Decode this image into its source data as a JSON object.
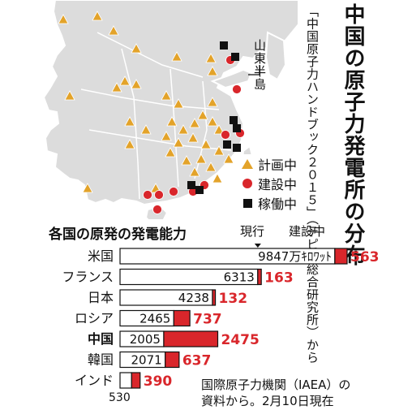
{
  "title": "中国の原子力発電所の分布",
  "source": "「中国原子力ハンドブック２０１５」（テピア総合研究所）から",
  "map": {
    "label": "山東半島",
    "legend": [
      {
        "label": "計画中",
        "symbol": "triangle-icon"
      },
      {
        "label": "建設中",
        "symbol": "circle-icon"
      },
      {
        "label": "稼働中",
        "symbol": "square-icon"
      }
    ],
    "colors": {
      "land": "#dcdcdc",
      "border": "#ffffff",
      "planned": "#e3a32a",
      "construction": "#d9262b",
      "operating": "#111111"
    }
  },
  "chart_data": {
    "type": "bar",
    "title": "各国の原発の発電能力",
    "header_current": "現行",
    "header_construction": "建設中",
    "unit_label": "9847万ｷﾛﾜｯﾄ",
    "categories": [
      "米国",
      "フランス",
      "日本",
      "ロシア",
      "中国",
      "韓国",
      "インド"
    ],
    "highlight": "中国",
    "series": [
      {
        "name": "現行",
        "values": [
          9847,
          6313,
          4238,
          2465,
          2005,
          2071,
          530
        ],
        "color": "#ffffff"
      },
      {
        "name": "建設中",
        "values": [
          563,
          163,
          132,
          737,
          2475,
          637,
          390
        ],
        "color": "#d9262b"
      }
    ],
    "value_labels_current": [
      "9847万ｷﾛﾜｯﾄ",
      "6313",
      "4238",
      "2465",
      "2005",
      "2071",
      "530"
    ],
    "value_labels_construction": [
      "563",
      "163",
      "132",
      "737",
      "2475",
      "637",
      "390"
    ],
    "note": [
      "国際原子力機関（IAEA）の",
      "資料から。2月10日現在"
    ]
  }
}
